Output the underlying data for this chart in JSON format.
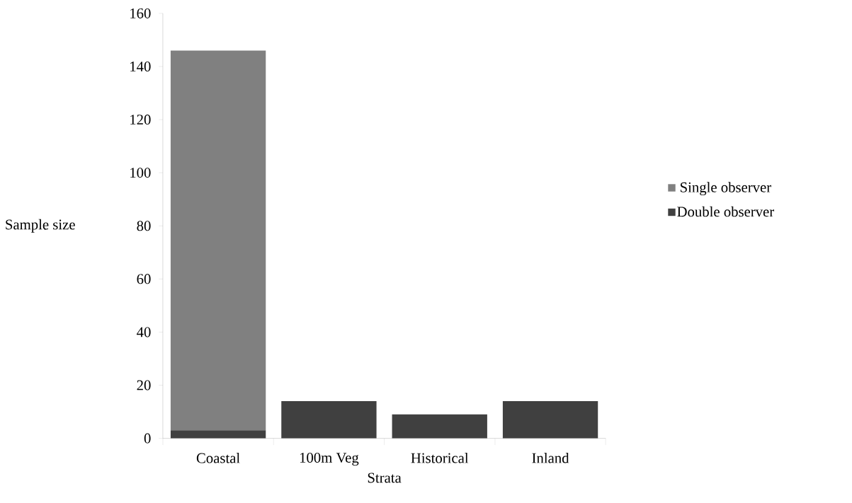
{
  "chart_data": {
    "type": "bar",
    "stacked": true,
    "xlabel": "Strata",
    "ylabel": "Sample size",
    "categories": [
      "Coastal",
      "100m Veg",
      "Historical",
      "Inland"
    ],
    "series": [
      {
        "name": "Double observer",
        "color": "#404040",
        "values": [
          3,
          14,
          9,
          14
        ]
      },
      {
        "name": "Single observer",
        "color": "#808080",
        "values": [
          143,
          0,
          0,
          0
        ]
      }
    ],
    "ylim": [
      0,
      160
    ],
    "yticks": [
      0,
      20,
      40,
      60,
      80,
      100,
      120,
      140,
      160
    ],
    "grid": false,
    "legend": "right"
  }
}
